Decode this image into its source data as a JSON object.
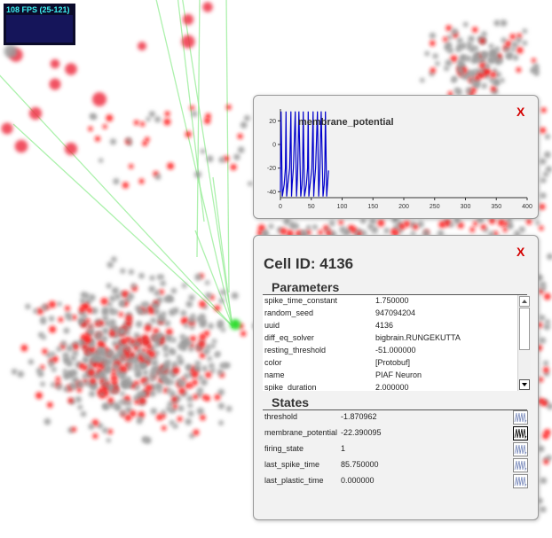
{
  "fps": {
    "label": "108 FPS (25-121)",
    "bars": [
      0.2,
      0.9
    ]
  },
  "plot_panel": {
    "close_label": "X",
    "chart_data": {
      "type": "line",
      "title": "membrane_potential",
      "xlabel": "",
      "ylabel": "",
      "xlim": [
        0,
        400
      ],
      "ylim": [
        -45,
        30
      ],
      "x_ticks": [
        "0",
        "50",
        "100",
        "150",
        "200",
        "250",
        "300",
        "350",
        "400"
      ],
      "y_ticks": [
        "20",
        "0",
        "-20",
        "-40"
      ],
      "series": [
        {
          "color": "#0000cc",
          "x": [
            0,
            1,
            3,
            6,
            8,
            9,
            10,
            12,
            15,
            17,
            18,
            19,
            21,
            24,
            26,
            27,
            28,
            30,
            33,
            35,
            36,
            37,
            39,
            42,
            44,
            45,
            46,
            48,
            51,
            53,
            54,
            55,
            57,
            60,
            62,
            63,
            64,
            66,
            69,
            71,
            72,
            73,
            75,
            78
          ],
          "y": [
            -40,
            28,
            -44,
            -34,
            -20,
            28,
            -44,
            -34,
            -20,
            28,
            -44,
            -34,
            -20,
            28,
            -44,
            -34,
            -20,
            28,
            -44,
            -34,
            -20,
            28,
            -44,
            -34,
            -20,
            28,
            -44,
            -34,
            -20,
            28,
            -44,
            -34,
            -20,
            28,
            -44,
            -34,
            -20,
            28,
            -44,
            -34,
            -20,
            28,
            -44,
            -22
          ]
        }
      ]
    }
  },
  "cell_panel": {
    "title": "Cell ID: 4136",
    "close_label": "X",
    "parameters_heading": "Parameters",
    "parameters": [
      {
        "key": "spike_time_constant",
        "value": "1.750000"
      },
      {
        "key": "random_seed",
        "value": "947094204"
      },
      {
        "key": "uuid",
        "value": "4136"
      },
      {
        "key": "diff_eq_solver",
        "value": "bigbrain.RUNGEKUTTA"
      },
      {
        "key": "resting_threshold",
        "value": "-51.000000"
      },
      {
        "key": "color",
        "value": "[Protobuf]"
      },
      {
        "key": "name",
        "value": "PIAF Neuron"
      },
      {
        "key": "spike_duration",
        "value": "2.000000"
      }
    ],
    "states_heading": "States",
    "states": [
      {
        "key": "threshold",
        "value": "-1.870962"
      },
      {
        "key": "membrane_potential",
        "value": "-22.390095"
      },
      {
        "key": "firing_state",
        "value": "1"
      },
      {
        "key": "last_spike_time",
        "value": "85.750000"
      },
      {
        "key": "last_plastic_time",
        "value": "0.000000"
      }
    ]
  }
}
